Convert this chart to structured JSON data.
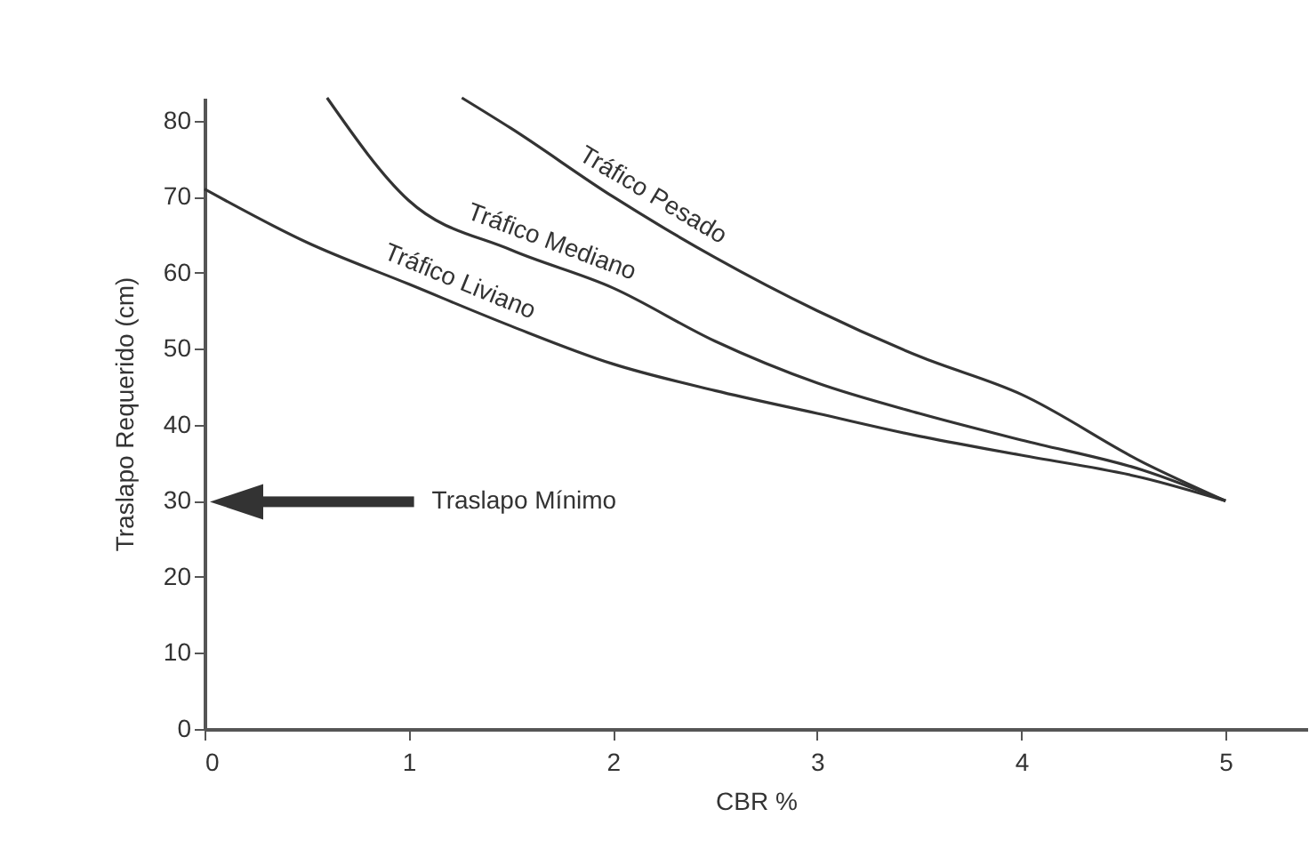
{
  "chart_data": {
    "type": "line",
    "xlabel": "CBR %",
    "ylabel": "Traslapo Requerido (cm)",
    "series": [
      {
        "name": "Tráfico Liviano",
        "color": "#333333",
        "x": [
          0,
          0.5,
          1,
          1.5,
          2,
          2.5,
          3,
          3.5,
          4,
          4.6,
          5
        ],
        "values": [
          71,
          64,
          58.5,
          53,
          48,
          44.5,
          41.5,
          38.5,
          36,
          33,
          30
        ]
      },
      {
        "name": "Tráfico Mediano",
        "color": "#333333",
        "x": [
          0.6,
          1,
          1.5,
          2,
          2.5,
          3,
          3.5,
          4,
          4.6,
          5
        ],
        "values": [
          83,
          69.5,
          63,
          58,
          51,
          45.5,
          41.5,
          38,
          34,
          30
        ]
      },
      {
        "name": "Tráfico Pesado",
        "color": "#333333",
        "x": [
          1.26,
          1.5,
          2,
          2.5,
          3,
          3.5,
          4,
          4.6,
          5
        ],
        "values": [
          83,
          79,
          70,
          62,
          55,
          49,
          44,
          35,
          30
        ]
      }
    ],
    "annotations": [
      "Traslapo Mínimo"
    ],
    "xlim": [
      0,
      5.4
    ],
    "ylim": [
      0,
      83
    ],
    "xticks": [
      0,
      1,
      2,
      3,
      4,
      5
    ],
    "yticks": [
      0,
      10,
      20,
      30,
      40,
      50,
      60,
      70,
      80
    ],
    "grid": false,
    "marker": "none",
    "line_style": "solid"
  }
}
